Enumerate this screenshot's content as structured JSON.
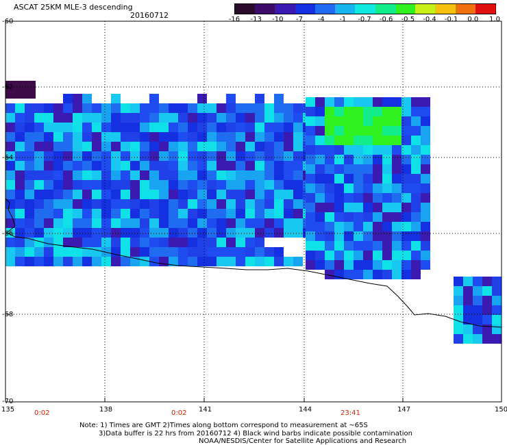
{
  "header": {
    "title": "ASCAT 25KM MLE-3 descending",
    "date": "20160712"
  },
  "colorbar": {
    "labels": [
      "-16",
      "-13",
      "-10",
      "-7",
      "-4",
      "-1",
      "-0.7",
      "-0.6",
      "-0.5",
      "-0.4",
      "-0.1",
      "0.0",
      "1.0"
    ],
    "colors": [
      "#2a0a2a",
      "#3d0b68",
      "#3a1ab0",
      "#1430e0",
      "#1f6cf0",
      "#18b4f0",
      "#10e8e0",
      "#12ec8a",
      "#30f020",
      "#c8f018",
      "#f6c010",
      "#f07010",
      "#e01010"
    ]
  },
  "axes": {
    "lat_labels": [
      "-60",
      "-62",
      "-64",
      "-66",
      "-68",
      "-70"
    ],
    "lon_labels": [
      "135",
      "138",
      "141",
      "144",
      "147",
      "150"
    ]
  },
  "time_labels": [
    "0:02",
    "0:02",
    "23:41"
  ],
  "notes": {
    "line1": "Note: 1) Times are GMT 2)Times along bottom correspond to measurement at ~65S",
    "line2": "3)Data buffer is 22 hrs from 20160712 4) Black wind barbs indicate possible contamination",
    "line3": "NOAA/NESDIS/Center for Satellite Applications and Research"
  }
}
